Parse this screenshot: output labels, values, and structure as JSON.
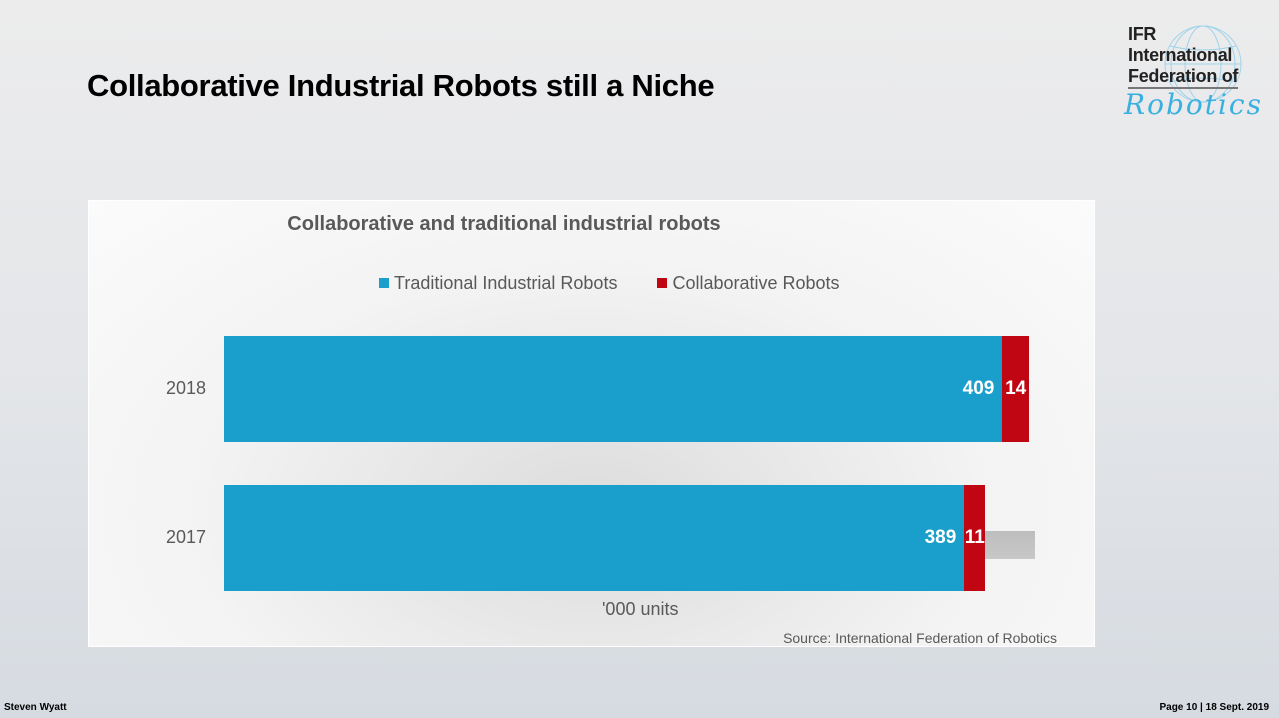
{
  "slide": {
    "title": "Collaborative Industrial Robots still a Niche",
    "footer_left": "Steven Wyatt",
    "footer_right": "Page 10 | 18 Sept. 2019"
  },
  "logo": {
    "line1": "IFR",
    "line2": "International",
    "line3": "Federation of",
    "line4": "Robotics"
  },
  "chart_data": {
    "type": "bar",
    "orientation": "horizontal",
    "stacked": true,
    "title": "Collaborative and traditional industrial robots",
    "categories": [
      "2018",
      "2017"
    ],
    "series": [
      {
        "name": "Traditional Industrial Robots",
        "color": "#1a9fcc",
        "values": [
          409,
          389
        ]
      },
      {
        "name": "Collaborative Robots",
        "color": "#c00612",
        "values": [
          14,
          11
        ]
      }
    ],
    "xlabel": "'000 units",
    "xlim": [
      0,
      423
    ],
    "legend": "top",
    "source": "Source: International Federation of Robotics"
  }
}
